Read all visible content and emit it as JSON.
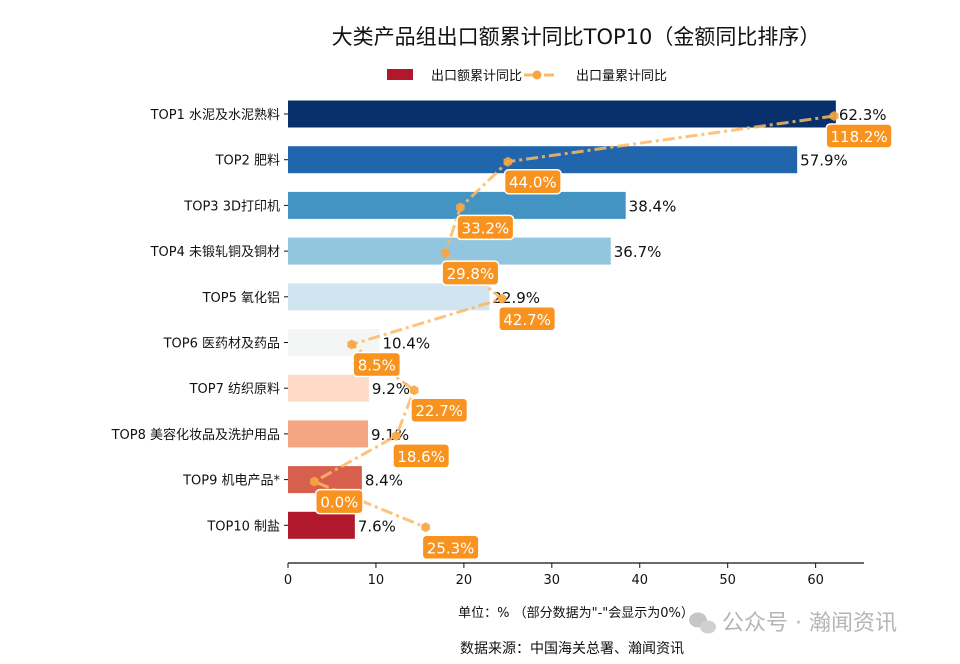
{
  "chart_data": {
    "type": "bar",
    "orientation": "horizontal",
    "title": "大类产品组出口额累计同比TOP10（金额同比排序）",
    "categories": [
      "TOP1 水泥及水泥熟料",
      "TOP2 肥料",
      "TOP3 3D打印机",
      "TOP4 未锻轧铜及铜材",
      "TOP5 氧化铝",
      "TOP6 医药材及药品",
      "TOP7 纺织原料",
      "TOP8 美容化妆品及洗护用品",
      "TOP9 机电产品*",
      "TOP10 制盐"
    ],
    "series": [
      {
        "name": "出口额累计同比",
        "type": "bar",
        "values": [
          62.3,
          57.9,
          38.4,
          36.7,
          22.9,
          10.4,
          9.2,
          9.1,
          8.4,
          7.6
        ],
        "labels": [
          "62.3%",
          "57.9%",
          "38.4%",
          "36.7%",
          "22.9%",
          "10.4%",
          "9.2%",
          "9.1%",
          "8.4%",
          "7.6%"
        ],
        "colors": [
          "#08306b",
          "#2166ac",
          "#4393c3",
          "#92c5de",
          "#d1e5f0",
          "#f4f6f6",
          "#fddbc7",
          "#f4a582",
          "#d6604d",
          "#b2182b"
        ]
      },
      {
        "name": "出口量累计同比",
        "type": "line",
        "values": [
          118.2,
          44.0,
          33.2,
          29.8,
          42.7,
          8.5,
          22.7,
          18.6,
          0.0,
          25.3
        ],
        "labels": [
          "118.2%",
          "44.0%",
          "33.2%",
          "29.8%",
          "42.7%",
          "8.5%",
          "22.7%",
          "18.6%",
          "0.0%",
          "25.3%"
        ],
        "color": "#fdb863",
        "marker_color": "#f7a540",
        "label_bg": "#f7931e",
        "line_style": "dash-dot"
      }
    ],
    "xlim": [
      0,
      65.5
    ],
    "xticks": [
      0,
      10,
      20,
      30,
      40,
      50,
      60
    ],
    "xlabel": "单位：%  （部分数据为\"-\"会显示为0%）",
    "grid": false,
    "legend_position": "top-center",
    "legend_swatch_color": "#b2182b"
  },
  "source": "数据来源：中国海关总署、瀚闻资讯",
  "watermark": "公众号 · 瀚闻资讯"
}
